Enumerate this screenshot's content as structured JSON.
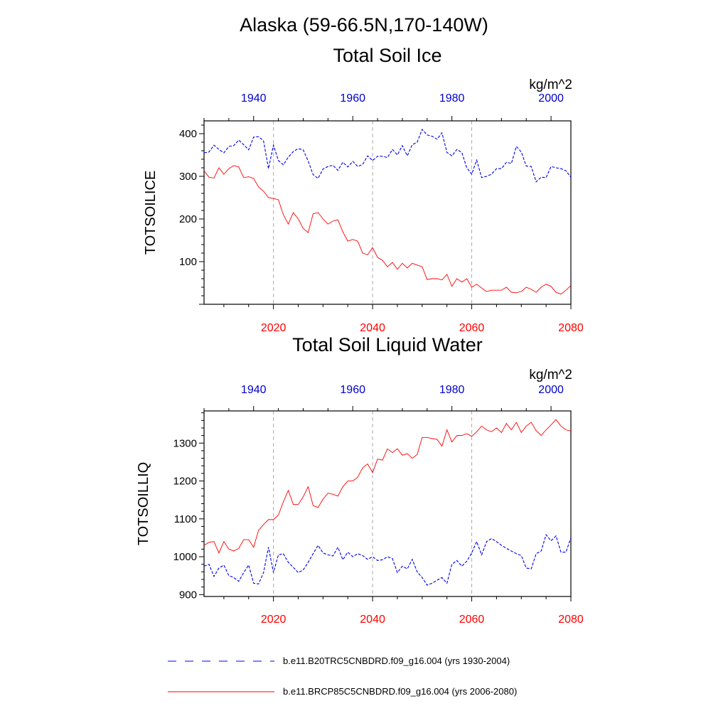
{
  "figure_title": "Alaska (59-66.5N,170-140W)",
  "colors": {
    "historical": "#0000ee",
    "future": "#ff0000",
    "grid": "#aaaaaa"
  },
  "legend": [
    {
      "label": "b.e11.B20TRC5CNBDRD.f09_g16.004 (yrs 1930-2004)",
      "style": "dashed",
      "color": "#0000ee"
    },
    {
      "label": "b.e11.BRCP85C5CNBDRD.f09_g16.004 (yrs 2006-2080)",
      "style": "solid",
      "color": "#ff0000"
    }
  ],
  "chart_data": [
    {
      "type": "line",
      "title": "Total Soil Ice",
      "ylabel": "TOTSOILICE",
      "units": "kg/m^2",
      "ylim": [
        0,
        430
      ],
      "yticks": [
        100,
        200,
        300,
        400
      ],
      "x_bottom": {
        "range": [
          2006,
          2080
        ],
        "ticks": [
          2020,
          2040,
          2060,
          2080
        ]
      },
      "x_top": {
        "range": [
          1930,
          2004
        ],
        "ticks": [
          1940,
          1960,
          1980,
          2000
        ]
      },
      "grid_x": [
        2020,
        2040,
        2060
      ],
      "series": [
        {
          "name": "b.e11.B20TRC5CNBDRD.f09_g16.004 (yrs 1930-2004)",
          "axis": "top",
          "style": "dashed",
          "x_start": 1930,
          "values": [
            355,
            357,
            373,
            363,
            355,
            370,
            372,
            385,
            374,
            362,
            392,
            393,
            383,
            318,
            373,
            337,
            327,
            345,
            358,
            365,
            362,
            336,
            304,
            295,
            317,
            323,
            326,
            314,
            333,
            322,
            335,
            323,
            328,
            348,
            337,
            347,
            347,
            344,
            363,
            350,
            372,
            348,
            374,
            380,
            410,
            397,
            394,
            387,
            402,
            356,
            348,
            363,
            356,
            320,
            305,
            338,
            297,
            300,
            305,
            318,
            318,
            333,
            330,
            370,
            357,
            324,
            323,
            287,
            298,
            297,
            323,
            320,
            318,
            313,
            298
          ]
        },
        {
          "name": "b.e11.BRCP85C5CNBDRD.f09_g16.004 (yrs 2006-2080)",
          "axis": "bottom",
          "style": "solid",
          "x_start": 2006,
          "values": [
            313,
            298,
            296,
            320,
            305,
            318,
            325,
            322,
            297,
            299,
            295,
            275,
            265,
            250,
            248,
            245,
            210,
            188,
            215,
            200,
            178,
            168,
            212,
            215,
            200,
            188,
            195,
            198,
            170,
            148,
            152,
            148,
            120,
            116,
            133,
            110,
            103,
            88,
            98,
            82,
            96,
            85,
            96,
            92,
            88,
            58,
            60,
            60,
            57,
            70,
            42,
            60,
            52,
            60,
            40,
            47,
            38,
            30,
            33,
            33,
            33,
            40,
            28,
            27,
            30,
            40,
            35,
            28,
            40,
            47,
            42,
            28,
            24,
            33,
            44
          ]
        }
      ]
    },
    {
      "type": "line",
      "title": "Total Soil Liquid Water",
      "ylabel": "TOTSOILLIQ",
      "units": "kg/m^2",
      "ylim": [
        895,
        1385
      ],
      "yticks": [
        900,
        1000,
        1100,
        1200,
        1300
      ],
      "x_bottom": {
        "range": [
          2006,
          2080
        ],
        "ticks": [
          2020,
          2040,
          2060,
          2080
        ]
      },
      "x_top": {
        "range": [
          1930,
          2004
        ],
        "ticks": [
          1940,
          1960,
          1980,
          2000
        ]
      },
      "grid_x": [
        2020,
        2040,
        2060
      ],
      "series": [
        {
          "name": "b.e11.B20TRC5CNBDRD.f09_g16.004 (yrs 1930-2004)",
          "axis": "top",
          "style": "dashed",
          "x_start": 1930,
          "values": [
            975,
            980,
            948,
            970,
            978,
            950,
            945,
            935,
            958,
            978,
            930,
            928,
            958,
            1025,
            958,
            1005,
            1008,
            985,
            972,
            958,
            965,
            985,
            1008,
            1030,
            1010,
            1005,
            1002,
            1025,
            992,
            1012,
            1000,
            1008,
            1003,
            993,
            1000,
            990,
            992,
            1000,
            995,
            958,
            975,
            968,
            993,
            960,
            945,
            925,
            930,
            938,
            945,
            930,
            980,
            990,
            975,
            988,
            1010,
            1040,
            1005,
            1040,
            1048,
            1040,
            1030,
            1022,
            1015,
            1008,
            1003,
            970,
            968,
            1008,
            1015,
            1058,
            1042,
            1055,
            1012,
            1012,
            1050
          ]
        },
        {
          "name": "b.e11.BRCP85C5CNBDRD.f09_g16.004 (yrs 2006-2080)",
          "axis": "bottom",
          "style": "solid",
          "x_start": 2006,
          "values": [
            1030,
            1038,
            1040,
            1010,
            1040,
            1020,
            1015,
            1022,
            1045,
            1045,
            1025,
            1070,
            1085,
            1098,
            1098,
            1110,
            1145,
            1175,
            1138,
            1138,
            1158,
            1185,
            1135,
            1130,
            1152,
            1168,
            1165,
            1160,
            1185,
            1200,
            1200,
            1210,
            1235,
            1245,
            1222,
            1258,
            1255,
            1285,
            1275,
            1285,
            1268,
            1272,
            1260,
            1270,
            1315,
            1315,
            1312,
            1310,
            1292,
            1335,
            1303,
            1320,
            1320,
            1325,
            1318,
            1330,
            1345,
            1335,
            1330,
            1340,
            1328,
            1352,
            1335,
            1355,
            1328,
            1345,
            1355,
            1333,
            1320,
            1335,
            1348,
            1362,
            1345,
            1335,
            1332
          ]
        }
      ]
    }
  ]
}
